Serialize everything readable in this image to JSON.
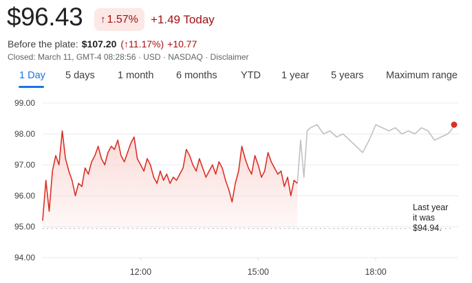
{
  "quote": {
    "price": "$96.43",
    "change_pct": "1.57%",
    "change_abs": "+1.49 Today"
  },
  "premarket": {
    "label": "Before the plate:",
    "price": "$107.20",
    "pct": "11.17%",
    "pct_wrap_open": "(",
    "pct_wrap_close": ")",
    "abs": "+10.77"
  },
  "meta": "Closed: March 11, GMT-4 08:28:56 · USD · NASDAQ · Disclaimer",
  "tabs": [
    "1 Day",
    "5 days",
    "1 month",
    "6 months",
    "YTD",
    "1 year",
    "5 years",
    "Maximum range"
  ],
  "active_tab": 0,
  "annotation": [
    "Last year",
    "it was",
    "$94.94."
  ],
  "colors": {
    "regular_line": "#d93025",
    "afterhours_line": "#bdc1c6",
    "area_fill": "#f9d5d2",
    "gridline": "#e8eaed",
    "baseline": "#9aa0a6",
    "end_dot": "#d93025"
  },
  "chart_data": {
    "type": "line",
    "ylim": [
      94,
      99
    ],
    "yticks": [
      94,
      95,
      96,
      97,
      98,
      99
    ],
    "ytick_labels": [
      "94.00",
      "95.00",
      "96.00",
      "97.00",
      "98.00",
      "99.00"
    ],
    "xlim": [
      "09:30",
      "20:00"
    ],
    "xticks": [
      "12:00",
      "15:00",
      "18:00"
    ],
    "grid": true,
    "reference_line": 94.94,
    "series": [
      {
        "segment": "regular",
        "x": [
          "09:30",
          "09:35",
          "09:40",
          "09:45",
          "09:50",
          "09:55",
          "10:00",
          "10:05",
          "10:10",
          "10:15",
          "10:20",
          "10:25",
          "10:30",
          "10:35",
          "10:40",
          "10:45",
          "10:50",
          "10:55",
          "11:00",
          "11:05",
          "11:10",
          "11:15",
          "11:20",
          "11:25",
          "11:30",
          "11:35",
          "11:40",
          "11:45",
          "11:50",
          "11:55",
          "12:00",
          "12:05",
          "12:10",
          "12:15",
          "12:20",
          "12:25",
          "12:30",
          "12:35",
          "12:40",
          "12:45",
          "12:50",
          "12:55",
          "13:00",
          "13:05",
          "13:10",
          "13:15",
          "13:20",
          "13:25",
          "13:30",
          "13:35",
          "13:40",
          "13:45",
          "13:50",
          "13:55",
          "14:00",
          "14:05",
          "14:10",
          "14:15",
          "14:20",
          "14:25",
          "14:30",
          "14:35",
          "14:40",
          "14:45",
          "14:50",
          "14:55",
          "15:00",
          "15:05",
          "15:10",
          "15:15",
          "15:20",
          "15:25",
          "15:30",
          "15:35",
          "15:40",
          "15:45",
          "15:50",
          "15:55",
          "16:00"
        ],
        "values": [
          95.2,
          96.5,
          95.5,
          96.8,
          97.3,
          97.0,
          98.1,
          97.2,
          96.8,
          96.5,
          96.0,
          96.4,
          96.3,
          96.9,
          96.7,
          97.1,
          97.3,
          97.6,
          97.2,
          97.0,
          97.4,
          97.6,
          97.5,
          97.8,
          97.3,
          97.1,
          97.4,
          97.7,
          97.9,
          97.2,
          97.0,
          96.8,
          97.2,
          97.0,
          96.6,
          96.4,
          96.8,
          96.5,
          96.7,
          96.4,
          96.6,
          96.5,
          96.7,
          96.9,
          97.5,
          97.3,
          97.0,
          96.8,
          97.2,
          96.9,
          96.6,
          96.8,
          97.0,
          96.7,
          97.1,
          96.9,
          96.5,
          96.2,
          95.8,
          96.4,
          96.8,
          97.6,
          97.2,
          96.9,
          96.7,
          97.3,
          97.0,
          96.6,
          96.8,
          97.4,
          97.1,
          96.9,
          96.7,
          96.8,
          96.3,
          96.6,
          96.0,
          96.5,
          96.4
        ]
      },
      {
        "segment": "after_hours",
        "x": [
          "16:00",
          "16:05",
          "16:10",
          "16:15",
          "16:20",
          "16:30",
          "16:40",
          "16:50",
          "17:00",
          "17:10",
          "17:20",
          "17:30",
          "17:40",
          "17:50",
          "18:00",
          "18:10",
          "18:20",
          "18:30",
          "18:40",
          "18:50",
          "19:00",
          "19:10",
          "19:20",
          "19:30",
          "19:40",
          "19:50",
          "19:55",
          "20:00"
        ],
        "values": [
          96.4,
          97.8,
          96.6,
          98.1,
          98.2,
          98.3,
          98.0,
          98.1,
          97.9,
          98.0,
          97.8,
          97.6,
          97.4,
          97.8,
          98.3,
          98.2,
          98.1,
          98.2,
          98.0,
          98.1,
          98.0,
          98.2,
          98.1,
          97.8,
          97.9,
          98.0,
          98.1,
          98.3
        ]
      }
    ]
  }
}
